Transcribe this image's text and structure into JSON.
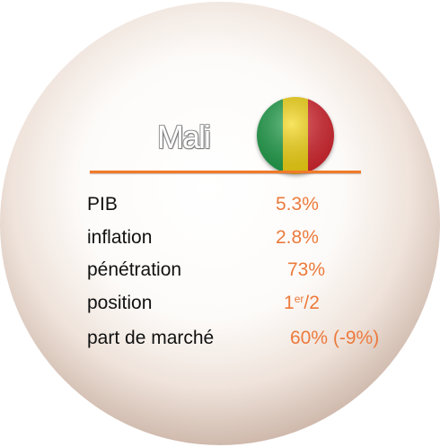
{
  "title": "Mali",
  "rows": [
    {
      "label": "PIB",
      "value": "5.3%"
    },
    {
      "label": "inflation",
      "value": "2.8%"
    },
    {
      "label": "pénétration",
      "value": "73%"
    },
    {
      "label": "position",
      "value": "1",
      "value_sup": "er",
      "value_rest": "/2"
    },
    {
      "label": "part de marché",
      "value": "60% (-9%)"
    }
  ]
}
